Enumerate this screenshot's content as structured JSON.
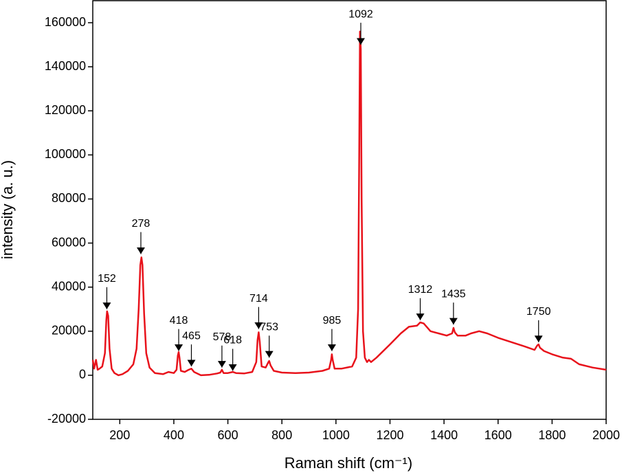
{
  "chart_data": {
    "type": "line",
    "xlabel": "Raman shift (cm⁻¹)",
    "ylabel": "intensity (a. u.)",
    "xlim": [
      100,
      2000
    ],
    "xticks": [
      200,
      400,
      600,
      800,
      1000,
      1200,
      1400,
      1600,
      1800,
      2000
    ],
    "ylim": [
      -20000,
      170000
    ],
    "yticks": [
      -20000,
      0,
      20000,
      40000,
      60000,
      80000,
      100000,
      120000,
      140000,
      160000
    ],
    "x": [
      100,
      105,
      112,
      118,
      125,
      135,
      145,
      150,
      153,
      157,
      162,
      170,
      180,
      195,
      210,
      230,
      250,
      262,
      270,
      276,
      280,
      284,
      290,
      298,
      310,
      330,
      360,
      380,
      400,
      410,
      415,
      418,
      421,
      426,
      440,
      455,
      465,
      475,
      500,
      530,
      560,
      572,
      578,
      584,
      600,
      618,
      630,
      660,
      690,
      705,
      710,
      714,
      718,
      725,
      740,
      750,
      753,
      758,
      770,
      800,
      850,
      900,
      950,
      975,
      982,
      985,
      988,
      995,
      1020,
      1060,
      1075,
      1082,
      1086,
      1089,
      1092,
      1095,
      1100,
      1107,
      1115,
      1122,
      1130,
      1150,
      1200,
      1240,
      1270,
      1300,
      1312,
      1325,
      1350,
      1380,
      1410,
      1430,
      1435,
      1440,
      1450,
      1480,
      1500,
      1530,
      1560,
      1600,
      1650,
      1700,
      1735,
      1745,
      1750,
      1755,
      1770,
      1800,
      1840,
      1870,
      1900,
      1950,
      2000
    ],
    "series": [
      {
        "color": "#e8121b",
        "values": [
          7000,
          3000,
          7000,
          2500,
          3000,
          4000,
          10000,
          25000,
          29000,
          27000,
          12000,
          3000,
          1000,
          0,
          500,
          2000,
          5000,
          12000,
          30000,
          50000,
          53500,
          50000,
          28000,
          10000,
          3500,
          1000,
          500,
          1500,
          1000,
          2500,
          9000,
          10500,
          8000,
          2000,
          1500,
          2500,
          3000,
          1500,
          0,
          200,
          800,
          1200,
          2500,
          1000,
          1000,
          1500,
          1000,
          800,
          1500,
          6000,
          16000,
          19500,
          15000,
          4000,
          3500,
          6000,
          6500,
          4500,
          2000,
          1200,
          1000,
          1200,
          2000,
          3000,
          7000,
          9500,
          7000,
          3000,
          3000,
          4000,
          8000,
          30000,
          100000,
          156000,
          148000,
          80000,
          20000,
          8000,
          6000,
          7000,
          6000,
          8000,
          14000,
          19000,
          22000,
          22500,
          24000,
          23500,
          20000,
          19000,
          18000,
          19000,
          21500,
          19500,
          18000,
          18000,
          19000,
          20000,
          19000,
          17000,
          15000,
          13000,
          11500,
          13500,
          14000,
          12500,
          11000,
          9500,
          8000,
          7500,
          5000,
          3500,
          2500
        ]
      }
    ],
    "annotations": [
      {
        "text": "152",
        "x": 152,
        "y": 30000
      },
      {
        "text": "278",
        "x": 278,
        "y": 55000
      },
      {
        "text": "418",
        "x": 418,
        "y": 11000
      },
      {
        "text": "465",
        "x": 465,
        "y": 4000
      },
      {
        "text": "578",
        "x": 578,
        "y": 3500
      },
      {
        "text": "618",
        "x": 618,
        "y": 2000
      },
      {
        "text": "714",
        "x": 714,
        "y": 21000
      },
      {
        "text": "753",
        "x": 753,
        "y": 8000
      },
      {
        "text": "985",
        "x": 985,
        "y": 11000
      },
      {
        "text": "1092",
        "x": 1092,
        "y": 150000
      },
      {
        "text": "1312",
        "x": 1312,
        "y": 25000
      },
      {
        "text": "1435",
        "x": 1435,
        "y": 23000
      },
      {
        "text": "1750",
        "x": 1750,
        "y": 15000
      }
    ]
  }
}
